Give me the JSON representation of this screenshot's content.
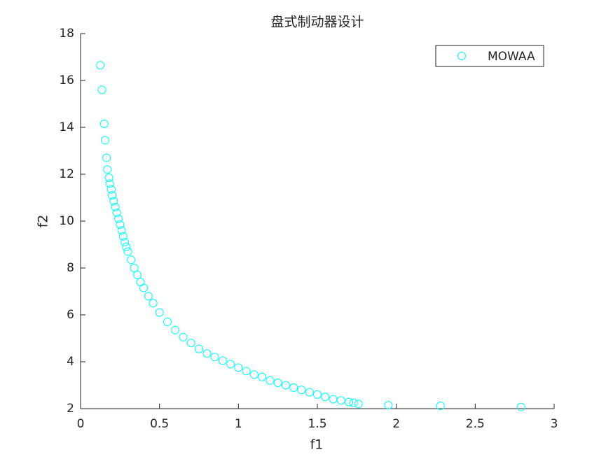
{
  "chart_data": {
    "type": "scatter",
    "title": "盘式制动器设计",
    "x_label": "f1",
    "y_label": "f2",
    "xlim": [
      0,
      3
    ],
    "ylim": [
      2,
      18
    ],
    "xticks": [
      0,
      0.5,
      1,
      1.5,
      2,
      2.5,
      3
    ],
    "yticks": [
      2,
      4,
      6,
      8,
      10,
      12,
      14,
      16,
      18
    ],
    "legend": "northeast",
    "series": [
      {
        "name": "MOWAA",
        "color": "#00ffff",
        "x": [
          0.125,
          0.135,
          0.15,
          0.155,
          0.165,
          0.17,
          0.18,
          0.185,
          0.195,
          0.2,
          0.21,
          0.22,
          0.23,
          0.24,
          0.25,
          0.26,
          0.27,
          0.28,
          0.29,
          0.3,
          0.32,
          0.34,
          0.36,
          0.38,
          0.4,
          0.43,
          0.46,
          0.5,
          0.55,
          0.6,
          0.65,
          0.7,
          0.75,
          0.8,
          0.85,
          0.9,
          0.95,
          1.0,
          1.05,
          1.1,
          1.15,
          1.2,
          1.25,
          1.3,
          1.35,
          1.4,
          1.45,
          1.5,
          1.55,
          1.6,
          1.65,
          1.7,
          1.73,
          1.76,
          1.95,
          2.28,
          2.79
        ],
        "values": [
          16.65,
          15.6,
          14.15,
          13.45,
          12.7,
          12.2,
          11.85,
          11.6,
          11.35,
          11.1,
          10.85,
          10.6,
          10.35,
          10.1,
          9.85,
          9.6,
          9.35,
          9.1,
          8.9,
          8.7,
          8.35,
          8.0,
          7.7,
          7.4,
          7.15,
          6.8,
          6.5,
          6.1,
          5.7,
          5.35,
          5.05,
          4.8,
          4.55,
          4.35,
          4.2,
          4.05,
          3.9,
          3.75,
          3.6,
          3.45,
          3.35,
          3.2,
          3.1,
          3.0,
          2.9,
          2.8,
          2.7,
          2.6,
          2.5,
          2.4,
          2.35,
          2.28,
          2.25,
          2.2,
          2.15,
          2.12,
          2.07
        ]
      }
    ]
  }
}
